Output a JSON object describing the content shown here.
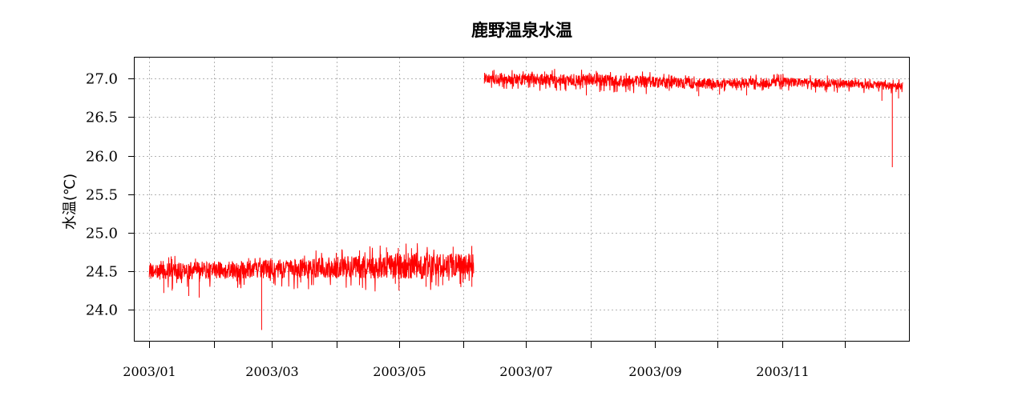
{
  "chart_data": {
    "type": "line",
    "title": "鹿野温泉水温",
    "xlabel": "",
    "ylabel": "水温(℃)",
    "x_range": [
      "2002-12-25",
      "2004-01-01"
    ],
    "ylim": [
      23.6,
      27.27
    ],
    "y_ticks": [
      24.0,
      24.5,
      25.0,
      25.5,
      26.0,
      26.5,
      27.0
    ],
    "y_tick_labels": [
      "24.0",
      "24.5",
      "25.0",
      "25.5",
      "26.0",
      "26.5",
      "27.0"
    ],
    "x_ticks": [
      "2003-01-01",
      "2003-02-01",
      "2003-03-01",
      "2003-04-01",
      "2003-05-01",
      "2003-06-01",
      "2003-07-01",
      "2003-08-01",
      "2003-09-01",
      "2003-10-01",
      "2003-11-01",
      "2003-12-01"
    ],
    "x_tick_labels": [
      "2003/01",
      "",
      "2003/03",
      "",
      "2003/05",
      "",
      "2003/07",
      "",
      "2003/09",
      "",
      "2003/11",
      ""
    ],
    "grid": true,
    "legend": "none",
    "series": [
      {
        "color": "#ff0000",
        "segments": [
          {
            "start": "2003-01-01",
            "end": "2003-06-06",
            "center": [
              [
                "2003-01-01",
                24.5
              ],
              [
                "2003-01-20",
                24.51
              ],
              [
                "2003-02-10",
                24.52
              ],
              [
                "2003-03-01",
                24.53
              ],
              [
                "2003-03-25",
                24.54
              ],
              [
                "2003-04-15",
                24.56
              ],
              [
                "2003-05-05",
                24.57
              ],
              [
                "2003-05-25",
                24.58
              ],
              [
                "2003-06-06",
                24.6
              ]
            ],
            "band": [
              [
                "2003-01-01",
                0.11
              ],
              [
                "2003-03-01",
                0.12
              ],
              [
                "2003-04-15",
                0.15
              ],
              [
                "2003-05-10",
                0.18
              ],
              [
                "2003-06-06",
                0.14
              ]
            ],
            "dips": [
              [
                "2003-01-08",
                24.22
              ],
              [
                "2003-01-12",
                24.25
              ],
              [
                "2003-01-20",
                24.18
              ],
              [
                "2003-01-25",
                24.16
              ],
              [
                "2003-02-24",
                23.74
              ],
              [
                "2003-04-12",
                24.32
              ],
              [
                "2003-05-01",
                24.25
              ],
              [
                "2003-05-14",
                24.3
              ],
              [
                "2003-05-22",
                24.32
              ],
              [
                "2003-06-05",
                24.3
              ]
            ],
            "peaks": [
              [
                "2003-04-25",
                24.81
              ],
              [
                "2003-05-07",
                24.8
              ],
              [
                "2003-05-27",
                24.82
              ]
            ]
          },
          {
            "start": "2003-06-11",
            "end": "2003-12-29",
            "center": [
              [
                "2003-06-11",
                26.99
              ],
              [
                "2003-07-01",
                26.99
              ],
              [
                "2003-08-01",
                26.98
              ],
              [
                "2003-09-01",
                26.95
              ],
              [
                "2003-10-01",
                26.93
              ],
              [
                "2003-11-01",
                26.95
              ],
              [
                "2003-12-01",
                26.93
              ],
              [
                "2003-12-29",
                26.9
              ]
            ],
            "band": [
              [
                "2003-06-11",
                0.07
              ],
              [
                "2003-08-01",
                0.08
              ],
              [
                "2003-10-01",
                0.07
              ],
              [
                "2003-12-29",
                0.05
              ]
            ],
            "dips": [
              [
                "2003-07-30",
                26.78
              ],
              [
                "2003-09-22",
                26.77
              ],
              [
                "2003-10-02",
                26.79
              ],
              [
                "2003-10-15",
                26.78
              ],
              [
                "2003-12-19",
                26.71
              ],
              [
                "2003-12-24",
                25.85
              ],
              [
                "2003-12-27",
                26.74
              ]
            ],
            "peaks": [
              [
                "2003-06-15",
                27.1
              ],
              [
                "2003-07-10",
                27.09
              ],
              [
                "2003-10-28",
                27.05
              ]
            ]
          }
        ]
      }
    ]
  }
}
